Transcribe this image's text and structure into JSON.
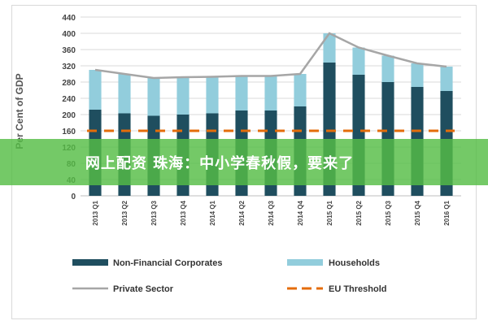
{
  "overlay": {
    "text": "网上配资 珠海：中小学春秋假，要来了"
  },
  "chart_data": {
    "type": "bar",
    "ylabel": "Per Cent of GDP",
    "ylim": [
      0,
      440
    ],
    "yticks": [
      0,
      40,
      80,
      120,
      160,
      200,
      240,
      280,
      320,
      360,
      400,
      440
    ],
    "grid": true,
    "legend_position": "bottom",
    "categories": [
      "2013 Q1",
      "2013 Q2",
      "2013 Q3",
      "2013 Q4",
      "2014 Q1",
      "2014 Q2",
      "2014 Q3",
      "2014 Q4",
      "2015 Q1",
      "2015 Q2",
      "2015 Q3",
      "2015 Q4",
      "2016 Q1"
    ],
    "series": [
      {
        "name": "Non-Financial Corporates",
        "kind": "stacked-bar",
        "color": "#1f4e5f",
        "values": [
          212,
          203,
          197,
          200,
          203,
          210,
          210,
          220,
          328,
          298,
          280,
          268,
          258
        ]
      },
      {
        "name": "Households",
        "kind": "stacked-bar",
        "color": "#92cddc",
        "values": [
          98,
          97,
          93,
          92,
          90,
          85,
          85,
          80,
          72,
          67,
          65,
          58,
          60
        ]
      },
      {
        "name": "Private Sector",
        "kind": "line",
        "color": "#a6a6a6",
        "values": [
          310,
          300,
          290,
          292,
          293,
          295,
          295,
          300,
          400,
          365,
          345,
          326,
          318
        ]
      },
      {
        "name": "EU Threshold",
        "kind": "dashed-line",
        "color": "#e46c0a",
        "values": [
          160,
          160,
          160,
          160,
          160,
          160,
          160,
          160,
          160,
          160,
          160,
          160,
          160
        ]
      }
    ]
  }
}
